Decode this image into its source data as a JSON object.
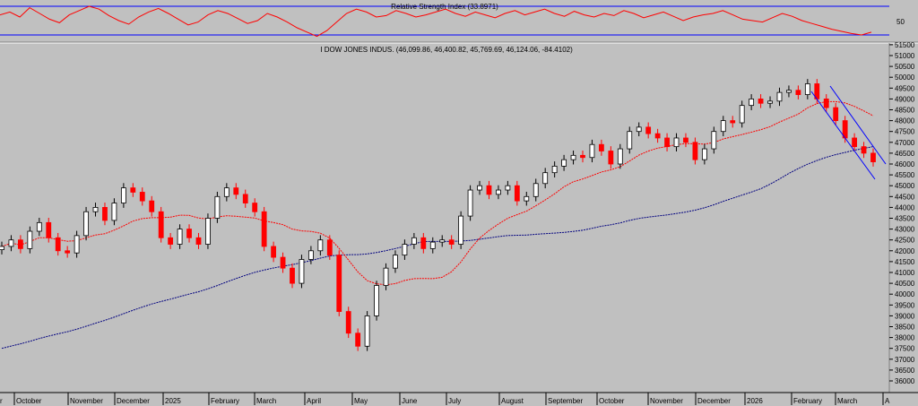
{
  "rsi_panel": {
    "title": "Relative Strength Index (33.8971)",
    "tick_label": "50",
    "upper_band": 70,
    "lower_band": 30
  },
  "chart_data": [
    {
      "type": "line",
      "title": "Relative Strength Index (33.8971)",
      "ylim": [
        0,
        100
      ],
      "yticks": [
        "50"
      ],
      "series": [
        {
          "values": [
            58,
            62,
            55,
            68,
            60,
            52,
            47,
            58,
            64,
            70,
            66,
            57,
            50,
            45,
            55,
            62,
            67,
            60,
            52,
            44,
            48,
            58,
            64,
            60,
            53,
            46,
            50,
            60,
            55,
            48,
            40,
            34,
            28,
            36,
            48,
            60,
            66,
            62,
            55,
            57,
            64,
            60,
            55,
            58,
            62,
            66,
            60,
            56,
            62,
            58,
            54,
            60,
            64,
            58,
            62,
            66,
            60,
            56,
            63,
            58,
            55,
            60,
            57,
            64,
            60,
            54,
            58,
            62,
            56,
            50,
            55,
            58,
            60,
            64,
            58,
            52,
            50,
            48,
            54,
            60,
            56,
            50,
            46,
            42,
            38,
            35,
            32,
            30,
            33.9
          ]
        }
      ],
      "bands": [
        70,
        30
      ],
      "color": "#ff0000",
      "band_color": "#0000ff"
    },
    {
      "type": "candlestick",
      "title": "I DOW JONES INDUS. (46,099.86, 46,400.82, 45,769.69, 46,124.06, -84.4102)",
      "ylim": [
        35600,
        51400
      ],
      "yticks": [
        "51500",
        "51000",
        "50500",
        "50000",
        "49500",
        "49000",
        "48500",
        "48000",
        "47500",
        "47000",
        "46500",
        "46000",
        "45500",
        "45000",
        "44500",
        "44000",
        "43500",
        "43000",
        "42500",
        "42000",
        "41500",
        "41000",
        "40500",
        "40000",
        "39500",
        "39000",
        "38500",
        "38000",
        "37500",
        "37000",
        "36500",
        "36000"
      ],
      "xticks": [
        "October",
        "November",
        "December",
        "2025",
        "February",
        "March",
        "April",
        "May",
        "June",
        "July",
        "August",
        "September",
        "October",
        "November",
        "December",
        "2026",
        "February",
        "March",
        "A"
      ],
      "x_edge_label": "r",
      "closes": [
        42200,
        42500,
        42100,
        42900,
        43300,
        42600,
        42000,
        41900,
        42700,
        43800,
        44000,
        43400,
        44200,
        44900,
        44700,
        44300,
        43800,
        42600,
        42300,
        43000,
        42600,
        42300,
        43500,
        44500,
        44900,
        44600,
        44200,
        43800,
        42200,
        41700,
        41200,
        40500,
        41600,
        42000,
        42500,
        41800,
        39200,
        38200,
        37600,
        39000,
        40400,
        41200,
        41800,
        42300,
        42600,
        42100,
        42400,
        42500,
        42300,
        43600,
        44800,
        45000,
        44600,
        44800,
        45000,
        44300,
        44500,
        45100,
        45600,
        45900,
        46200,
        46400,
        46300,
        46900,
        46600,
        46000,
        46700,
        47500,
        47700,
        47400,
        47200,
        46800,
        47200,
        47000,
        46200,
        46700,
        47500,
        48000,
        47900,
        48700,
        49000,
        48800,
        48900,
        49300,
        49400,
        49200,
        49700,
        49000,
        48600,
        48000,
        47200,
        46800,
        46500,
        46100
      ]
    }
  ],
  "colors": {
    "background": "#c0c0c0",
    "up_candle": "#000000",
    "down_candle": "#ff0000",
    "ma_short": "#ff0000",
    "ma_long": "#00007f",
    "channel": "#0000ff"
  }
}
